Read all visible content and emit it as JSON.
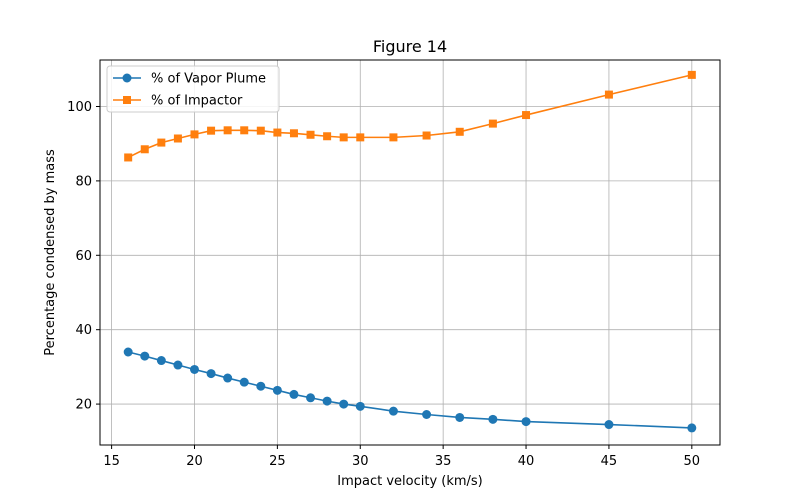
{
  "chart_data": {
    "type": "line",
    "title": "Figure 14",
    "xlabel": "Impact velocity (km/s)",
    "ylabel": "Percentage condensed by mass",
    "xlim": [
      14.3,
      51.7
    ],
    "ylim": [
      9.0,
      112.5
    ],
    "xticks": [
      15,
      20,
      25,
      30,
      35,
      40,
      45,
      50
    ],
    "yticks": [
      20,
      40,
      60,
      80,
      100
    ],
    "grid": true,
    "legend_position": "upper-left",
    "x": [
      16,
      17,
      18,
      19,
      20,
      21,
      22,
      23,
      24,
      25,
      26,
      27,
      28,
      29,
      30,
      32,
      34,
      36,
      38,
      40,
      45,
      50
    ],
    "series": [
      {
        "name": "% of Vapor Plume",
        "color": "#1f77b4",
        "marker": "circle",
        "values": [
          34.0,
          32.9,
          31.7,
          30.5,
          29.3,
          28.2,
          27.0,
          25.9,
          24.8,
          23.7,
          22.6,
          21.7,
          20.8,
          20.0,
          19.4,
          18.1,
          17.2,
          16.4,
          15.9,
          15.3,
          14.5,
          13.6
        ]
      },
      {
        "name": "% of Impactor",
        "color": "#ff7f0e",
        "marker": "square",
        "values": [
          86.3,
          88.5,
          90.3,
          91.4,
          92.5,
          93.5,
          93.6,
          93.6,
          93.5,
          93.0,
          92.8,
          92.4,
          92.0,
          91.7,
          91.7,
          91.7,
          92.2,
          93.2,
          95.4,
          97.7,
          103.2,
          108.5
        ]
      }
    ]
  }
}
